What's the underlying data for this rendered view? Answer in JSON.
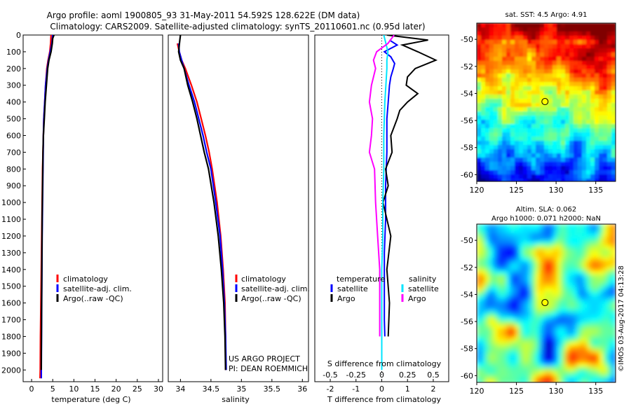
{
  "header": {
    "line1": "Argo profile: aoml 1900805_93 31-May-2011 54.592S 128.622E (DM data)",
    "line2": "Climatology: CARS2009. Satellite-adjusted climatology: synTS_20110601.nc (0.95d later)"
  },
  "credit": {
    "project": "US ARGO PROJECT",
    "pi": "PI: DEAN ROEMMICH",
    "imos": "©IMOS 03-Aug-2017 04:13:28"
  },
  "colors": {
    "climatology": "#ff0000",
    "satellite": "#0000ff",
    "argo": "#000000",
    "salinity_sat": "#00e5ff",
    "salinity_argo": "#ff00ff"
  },
  "chart_data": [
    {
      "type": "line",
      "id": "temperature",
      "xlabel": "temperature (deg C)",
      "xlim": [
        -2,
        31
      ],
      "ylim": [
        2070,
        0
      ],
      "xticks": [
        0,
        5,
        10,
        15,
        20,
        25,
        30
      ],
      "xtick_labels": [
        "0",
        "5",
        "10",
        "15",
        "20",
        "25",
        "30"
      ],
      "yticks": [
        0,
        100,
        200,
        300,
        400,
        500,
        600,
        700,
        800,
        900,
        1000,
        1100,
        1200,
        1300,
        1400,
        1500,
        1600,
        1700,
        1800,
        1900,
        2000
      ],
      "ytick_labels": [
        "0",
        "100",
        "200",
        "300",
        "400",
        "500",
        "600",
        "700",
        "800",
        "900",
        "1000",
        "1100",
        "1200",
        "1300",
        "1400",
        "1500",
        "1600",
        "1700",
        "1800",
        "1900",
        "2000"
      ],
      "legend": [
        "climatology",
        "satellite-adj. clim.",
        "Argo(..raw -QC)"
      ],
      "series": [
        {
          "name": "climatology",
          "color": "#ff0000",
          "depth": [
            0,
            50,
            100,
            150,
            200,
            300,
            400,
            500,
            600,
            800,
            1000,
            1200,
            1400,
            1600,
            1800,
            2000,
            2050
          ],
          "values": [
            4.6,
            4.5,
            4.3,
            3.9,
            3.6,
            3.3,
            3.1,
            2.9,
            2.8,
            2.6,
            2.5,
            2.4,
            2.3,
            2.2,
            2.1,
            2.05,
            2.0
          ]
        },
        {
          "name": "satellite-adj. clim.",
          "color": "#0000ff",
          "depth": [
            0,
            50,
            100,
            150,
            200,
            300,
            400,
            500,
            600,
            800,
            1000,
            1200,
            1400,
            1600,
            1800,
            2000,
            2050
          ],
          "values": [
            5.0,
            4.8,
            4.4,
            4.0,
            3.7,
            3.3,
            3.1,
            2.9,
            2.8,
            2.7,
            2.6,
            2.5,
            2.45,
            2.4,
            2.35,
            2.3,
            2.3
          ]
        },
        {
          "name": "Argo(..raw -QC)",
          "color": "#000000",
          "depth": [
            0,
            20,
            50,
            100,
            150,
            200,
            300,
            400,
            500,
            600,
            700,
            900,
            1100,
            1300,
            1500,
            1700,
            1900,
            2000
          ],
          "values": [
            5.3,
            5.0,
            4.9,
            4.6,
            4.1,
            3.8,
            3.5,
            3.2,
            3.0,
            2.8,
            2.7,
            2.6,
            2.5,
            2.45,
            2.4,
            2.35,
            2.3,
            2.3
          ]
        }
      ]
    },
    {
      "type": "line",
      "id": "salinity",
      "xlabel": "salinity",
      "xlim": [
        33.8,
        36.1
      ],
      "ylim": [
        2070,
        0
      ],
      "xticks": [
        34,
        34.5,
        35,
        35.5,
        36
      ],
      "xtick_labels": [
        "34",
        "34.5",
        "35",
        "35.5",
        "36"
      ],
      "legend": [
        "climatology",
        "satellite-adj. clim.",
        "Argo(..raw -QC)"
      ],
      "series": [
        {
          "name": "climatology",
          "color": "#ff0000",
          "depth": [
            50,
            100,
            150,
            200,
            300,
            400,
            500,
            600,
            700,
            800,
            1000,
            1200,
            1400,
            1600,
            1800,
            2000
          ],
          "values": [
            33.95,
            33.98,
            34.02,
            34.08,
            34.18,
            34.27,
            34.34,
            34.41,
            34.47,
            34.52,
            34.6,
            34.66,
            34.7,
            34.73,
            34.74,
            34.74
          ]
        },
        {
          "name": "satellite-adj. clim.",
          "color": "#0000ff",
          "depth": [
            50,
            100,
            150,
            200,
            300,
            400,
            500,
            600,
            700,
            800,
            1000,
            1200,
            1400,
            1600,
            1800,
            2000
          ],
          "values": [
            33.97,
            33.98,
            34.02,
            34.06,
            34.14,
            34.23,
            34.3,
            34.37,
            34.43,
            34.5,
            34.58,
            34.65,
            34.69,
            34.72,
            34.74,
            34.75
          ]
        },
        {
          "name": "Argo(..raw -QC)",
          "color": "#000000",
          "depth": [
            0,
            30,
            60,
            100,
            150,
            200,
            300,
            400,
            500,
            600,
            700,
            800,
            1000,
            1200,
            1400,
            1600,
            1800,
            2000
          ],
          "values": [
            34.0,
            33.99,
            33.98,
            33.97,
            34.0,
            34.06,
            34.12,
            34.2,
            34.27,
            34.33,
            34.39,
            34.46,
            34.55,
            34.62,
            34.67,
            34.71,
            34.73,
            34.74
          ]
        }
      ]
    },
    {
      "type": "line",
      "id": "differences",
      "xlabel": "T difference from climatology",
      "xlabel_top": "S difference from climatology",
      "xlim": [
        -2.6,
        2.6
      ],
      "ylim": [
        2070,
        0
      ],
      "xticks_T": [
        -2,
        -1,
        0,
        1,
        2
      ],
      "xtick_labels_T": [
        "-2",
        "-1",
        "0",
        "1",
        "2"
      ],
      "xticks_S": [
        -0.5,
        -0.25,
        0,
        0.25,
        0.5
      ],
      "xtick_labels_S": [
        "-0.5",
        "-0.25",
        "0",
        "0.25",
        "0.5"
      ],
      "legend_T_title": "temperature",
      "legend_S_title": "salinity",
      "legend": [
        "satellite",
        "Argo",
        "satellite",
        "Argo"
      ],
      "series": [
        {
          "name": "satellite",
          "group": "temperature",
          "color": "#0000ff",
          "depth": [
            30,
            60,
            100,
            130,
            170,
            200,
            250,
            300,
            400,
            500,
            700,
            900,
            1100,
            1300,
            1500,
            1700,
            1800
          ],
          "values": [
            0.3,
            0.6,
            0.1,
            0.35,
            0.5,
            0.45,
            0.35,
            0.3,
            0.25,
            0.2,
            0.2,
            0.15,
            0.15,
            0.1,
            0.1,
            0.1,
            0.12
          ]
        },
        {
          "name": "Argo",
          "group": "temperature",
          "color": "#000000",
          "depth": [
            0,
            30,
            60,
            100,
            150,
            200,
            250,
            300,
            350,
            400,
            450,
            500,
            600,
            700,
            800,
            900,
            1000,
            1200,
            1400,
            1600,
            1800
          ],
          "values": [
            0.2,
            1.8,
            0.8,
            1.4,
            2.1,
            1.3,
            1.0,
            0.95,
            1.4,
            1.0,
            0.7,
            0.6,
            0.35,
            0.4,
            0.15,
            0.25,
            0.05,
            0.35,
            0.2,
            0.3,
            0.25
          ]
        },
        {
          "name": "satellite",
          "group": "salinity",
          "color": "#00e5ff",
          "depth": [
            0,
            50,
            100,
            150,
            200,
            300,
            400,
            600,
            800,
            1000,
            1200,
            1400,
            1600,
            1800,
            2000
          ],
          "values": [
            0.02,
            0.04,
            0.06,
            0.05,
            0.05,
            0.04,
            0.03,
            0.02,
            0.02,
            0.01,
            0.01,
            0.0,
            0.0,
            0.0,
            0.0
          ]
        },
        {
          "name": "Argo",
          "group": "salinity",
          "color": "#ff00ff",
          "depth": [
            0,
            50,
            100,
            150,
            200,
            300,
            400,
            500,
            600,
            700,
            800,
            1000,
            1200,
            1400,
            1600,
            1800
          ],
          "values": [
            0.12,
            0.06,
            -0.05,
            -0.08,
            -0.06,
            -0.1,
            -0.12,
            -0.09,
            -0.1,
            -0.12,
            -0.07,
            -0.06,
            -0.04,
            -0.02,
            -0.02,
            -0.02
          ]
        }
      ]
    },
    {
      "type": "heatmap",
      "id": "sst-map",
      "title": "sat. SST: 4.5  Argo: 4.91",
      "xlim": [
        120,
        137.5
      ],
      "ylim": [
        -60.5,
        -48.8
      ],
      "xticks": [
        120,
        125,
        130,
        135
      ],
      "xtick_labels": [
        "120",
        "125",
        "130",
        "135"
      ],
      "yticks": [
        -50,
        -52,
        -54,
        -56,
        -58,
        -60
      ],
      "ytick_labels": [
        "-50",
        "-52",
        "-54",
        "-56",
        "-58",
        "-60"
      ],
      "marker": {
        "lon": 128.6,
        "lat": -54.6
      }
    },
    {
      "type": "heatmap",
      "id": "sla-map",
      "title": "Altim. SLA: 0.062",
      "subtitle": "Argo h1000: 0.071  h2000: NaN",
      "xlim": [
        120,
        137.5
      ],
      "ylim": [
        -60.5,
        -48.8
      ],
      "xticks": [
        120,
        125,
        130,
        135
      ],
      "xtick_labels": [
        "120",
        "125",
        "130",
        "135"
      ],
      "yticks": [
        -50,
        -52,
        -54,
        -56,
        -58,
        -60
      ],
      "ytick_labels": [
        "-50",
        "-52",
        "-54",
        "-56",
        "-58",
        "-60"
      ],
      "marker": {
        "lon": 128.6,
        "lat": -54.6
      }
    }
  ]
}
